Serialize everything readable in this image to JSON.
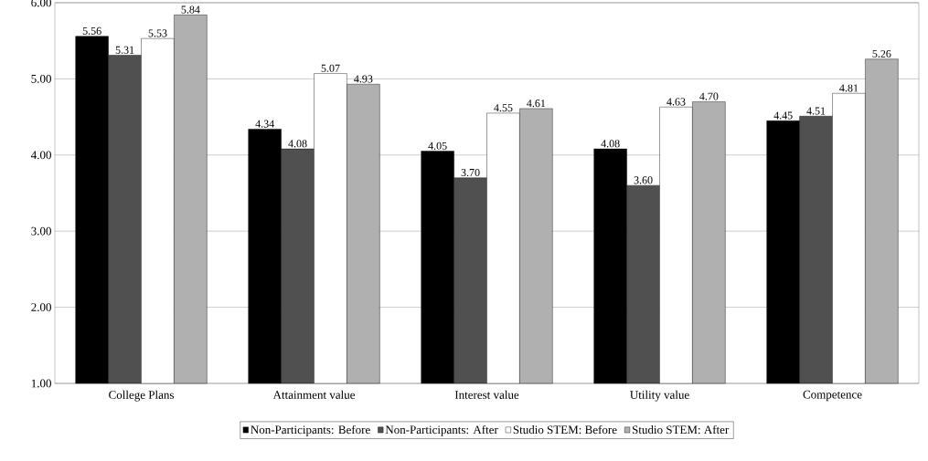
{
  "chart_data": {
    "type": "bar",
    "categories": [
      "College Plans",
      "Attainment value",
      "Interest value",
      "Utility value",
      "Competence"
    ],
    "series": [
      {
        "name": "Non-Participants: Before",
        "color": "#000000",
        "values": [
          5.56,
          4.34,
          4.05,
          4.08,
          4.45
        ],
        "value_labels": [
          "5.56",
          "4.34",
          "4.05",
          "4.08",
          "4.45"
        ]
      },
      {
        "name": "Non-Participants: After",
        "color": "#505050",
        "values": [
          5.31,
          4.08,
          3.7,
          3.6,
          4.51
        ],
        "value_labels": [
          "5.31",
          "4.08",
          "3.70",
          "3.60",
          "4.51"
        ]
      },
      {
        "name": "Studio STEM: Before",
        "color": "#ffffff",
        "values": [
          5.53,
          5.07,
          4.55,
          4.63,
          4.81
        ],
        "value_labels": [
          "5.53",
          "5.07",
          "4.55",
          "4.63",
          "4.81"
        ]
      },
      {
        "name": "Studio STEM: After",
        "color": "#b0b0b0",
        "values": [
          5.84,
          4.93,
          4.61,
          4.7,
          5.26
        ],
        "value_labels": [
          "5.84",
          "4.93",
          "4.61",
          "4.70",
          "5.26"
        ]
      }
    ],
    "ylim": [
      1,
      6
    ],
    "yticks": [
      {
        "value": 1,
        "label": "1.00"
      },
      {
        "value": 2,
        "label": "2.00"
      },
      {
        "value": 3,
        "label": "3.00"
      },
      {
        "value": 4,
        "label": "4.00"
      },
      {
        "value": 5,
        "label": "5.00"
      },
      {
        "value": 6,
        "label": "6.00"
      }
    ],
    "grid": "y",
    "legend": "bottom"
  }
}
